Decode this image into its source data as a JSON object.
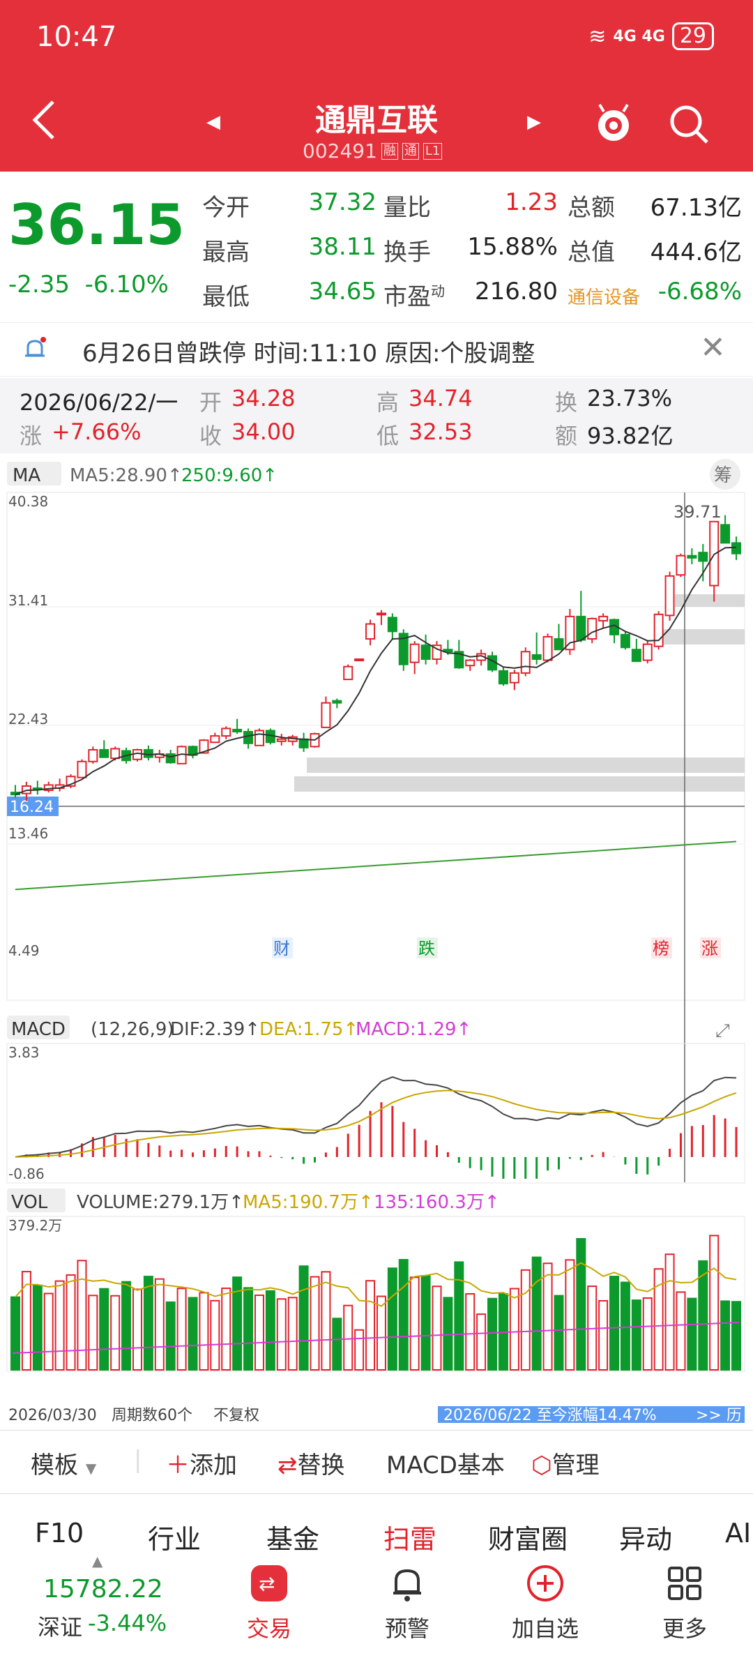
{
  "status": {
    "time": "10:47",
    "signal": "4G 4G",
    "battery": "29"
  },
  "header": {
    "title": "通鼎互联",
    "code": "002491",
    "tags": [
      "融",
      "通",
      "L1"
    ]
  },
  "quote": {
    "price": "36.15",
    "change": "-2.35",
    "change_pct": "-6.10%",
    "rows": [
      {
        "k1": "今开",
        "v1": "37.32",
        "k2": "量比",
        "v2": "1.23",
        "k3": "总额",
        "v3": "67.13亿"
      },
      {
        "k1": "最高",
        "v1": "38.11",
        "k2": "换手",
        "v2": "15.88%",
        "k3": "总值",
        "v3": "444.6亿"
      },
      {
        "k1": "最低",
        "v1": "34.65",
        "k2": "市盈",
        "k2sup": "动",
        "v2": "216.80",
        "k3": "通信设备",
        "v3": "-6.68%"
      }
    ]
  },
  "notice": {
    "text": "6月26日曾跌停  时间:11:10  原因:个股调整"
  },
  "dayinfo": {
    "date": "2026/06/22/一",
    "open_k": "开",
    "open_v": "34.28",
    "high_k": "高",
    "high_v": "34.74",
    "turn_k": "换",
    "turn_v": "23.73%",
    "rise_k": "涨",
    "rise_v": "+7.66%",
    "close_k": "收",
    "close_v": "34.00",
    "low_k": "低",
    "low_v": "32.53",
    "amt_k": "额",
    "amt_v": "93.82亿"
  },
  "kline": {
    "ma_label": "MA",
    "ma5": "MA5:28.90↑",
    "ma250": "250:9.60↑",
    "chip_btn": "筹",
    "y_labels": [
      "40.38",
      "31.41",
      "22.43",
      "13.46",
      "4.49"
    ],
    "cross_price": "16.24",
    "peak_label": "39.71",
    "markers": [
      "财",
      "跌",
      "榜",
      "涨"
    ]
  },
  "macd": {
    "label": "MACD",
    "params": "(12,26,9)",
    "dif": "DIF:2.39↑",
    "dea": "DEA:1.75↑",
    "macd": "MACD:1.29↑",
    "y_top": "3.83",
    "y_bottom": "-0.86"
  },
  "vol": {
    "label": "VOL",
    "volume": "VOLUME:279.1万↑",
    "ma5": "MA5:190.7万↑",
    "ma135": "135:160.3万↑",
    "y_top": "379.2万",
    "start_date": "2026/03/30",
    "period": "周期数60个",
    "adjust": "不复权",
    "range_text": "2026/06/22 至今涨幅14.47%",
    "range_more": ">> 历"
  },
  "toolbar": {
    "template": "模板",
    "add": "添加",
    "replace": "替换",
    "macd_basic": "MACD基本",
    "manage": "管理"
  },
  "tabs": [
    "F10",
    "行业",
    "基金",
    "扫雷",
    "财富圈",
    "异动",
    "AI"
  ],
  "bottom": {
    "index_value": "15782.22",
    "index_name": "深证",
    "index_change": "-3.44%",
    "trade": "交易",
    "alert": "预警",
    "add_watch": "加自选",
    "more": "更多"
  },
  "colors": {
    "up": "#e2222b",
    "down": "#0c9a2c",
    "header": "#e3303a"
  },
  "chart_data": {
    "type": "candlestick",
    "candles": [
      [
        14.6,
        15.3,
        14.1,
        14.4
      ],
      [
        14.5,
        15.6,
        13.8,
        15.2
      ],
      [
        15.0,
        15.7,
        14.4,
        14.9
      ],
      [
        14.8,
        15.6,
        14.6,
        15.3
      ],
      [
        15.0,
        15.9,
        14.7,
        15.3
      ],
      [
        15.2,
        16.3,
        15.0,
        16.1
      ],
      [
        16.0,
        17.7,
        16.0,
        17.5
      ],
      [
        17.5,
        18.9,
        17.3,
        18.6
      ],
      [
        18.6,
        19.5,
        17.9,
        17.9
      ],
      [
        17.8,
        18.9,
        17.6,
        18.7
      ],
      [
        18.5,
        18.8,
        17.3,
        17.6
      ],
      [
        17.7,
        18.7,
        17.5,
        18.6
      ],
      [
        18.6,
        19.0,
        17.6,
        17.9
      ],
      [
        17.9,
        18.6,
        17.4,
        18.2
      ],
      [
        18.2,
        18.6,
        17.3,
        17.4
      ],
      [
        17.3,
        19.0,
        17.3,
        18.9
      ],
      [
        18.9,
        19.0,
        17.8,
        18.1
      ],
      [
        18.3,
        19.6,
        18.3,
        19.5
      ],
      [
        19.3,
        20.2,
        19.3,
        19.9
      ],
      [
        19.9,
        20.8,
        19.6,
        20.6
      ],
      [
        20.5,
        21.5,
        20.1,
        20.3
      ],
      [
        20.3,
        20.6,
        18.7,
        19.2
      ],
      [
        19.0,
        20.6,
        19.0,
        20.4
      ],
      [
        20.4,
        20.6,
        19.1,
        19.3
      ],
      [
        19.4,
        20.1,
        19.0,
        19.6
      ],
      [
        19.4,
        20.0,
        19.0,
        19.8
      ],
      [
        19.6,
        20.2,
        18.4,
        18.8
      ],
      [
        18.9,
        20.2,
        18.8,
        20.1
      ],
      [
        20.7,
        23.6,
        20.7,
        23.0
      ],
      [
        23.2,
        23.4,
        22.5,
        23.0
      ],
      [
        25.2,
        26.6,
        25.2,
        26.4
      ],
      [
        27.0,
        27.1,
        27.0,
        27.1
      ],
      [
        29.0,
        30.8,
        28.4,
        30.4
      ],
      [
        31.3,
        31.7,
        30.3,
        31.4
      ],
      [
        31.0,
        31.4,
        28.9,
        29.7
      ],
      [
        29.5,
        29.9,
        26.0,
        26.6
      ],
      [
        26.8,
        28.8,
        25.7,
        28.5
      ],
      [
        28.4,
        29.4,
        26.6,
        27.1
      ],
      [
        27.1,
        28.8,
        26.6,
        28.4
      ],
      [
        28.0,
        28.9,
        27.5,
        27.8
      ],
      [
        27.8,
        28.9,
        26.2,
        26.3
      ],
      [
        26.5,
        27.1,
        26.0,
        27.0
      ],
      [
        27.0,
        28.0,
        26.5,
        27.6
      ],
      [
        27.4,
        27.8,
        25.9,
        26.1
      ],
      [
        26.0,
        26.4,
        24.6,
        24.8
      ],
      [
        24.9,
        26.1,
        24.2,
        25.8
      ],
      [
        25.8,
        28.2,
        25.5,
        27.8
      ],
      [
        27.5,
        29.6,
        26.6,
        27.1
      ],
      [
        27.0,
        29.5,
        26.8,
        29.2
      ],
      [
        29.0,
        30.4,
        28.0,
        28.0
      ],
      [
        28.0,
        31.8,
        27.5,
        31.1
      ],
      [
        31.1,
        33.5,
        28.7,
        28.9
      ],
      [
        29.0,
        31.0,
        28.6,
        30.9
      ],
      [
        30.7,
        31.4,
        30.0,
        31.1
      ],
      [
        30.8,
        30.9,
        28.6,
        29.4
      ],
      [
        29.4,
        29.7,
        28.0,
        28.2
      ],
      [
        28.0,
        29.0,
        26.9,
        26.9
      ],
      [
        27.0,
        28.8,
        26.7,
        28.5
      ],
      [
        28.3,
        31.6,
        28.0,
        31.3
      ],
      [
        31.2,
        35.3,
        30.7,
        34.9
      ],
      [
        35.0,
        37.0,
        34.8,
        36.8
      ],
      [
        36.8,
        37.5,
        36.0,
        36.6
      ],
      [
        37.1,
        37.9,
        34.4,
        36.3
      ],
      [
        34.0,
        40.0,
        32.5,
        40.0
      ],
      [
        39.7,
        40.6,
        38.0,
        38.0
      ],
      [
        38.0,
        38.6,
        36.4,
        37.0
      ]
    ],
    "ma250_start": 5.5,
    "ma250_end": 10.0,
    "dif_range": [
      -0.86,
      3.83
    ],
    "vol_max": 379.2
  }
}
